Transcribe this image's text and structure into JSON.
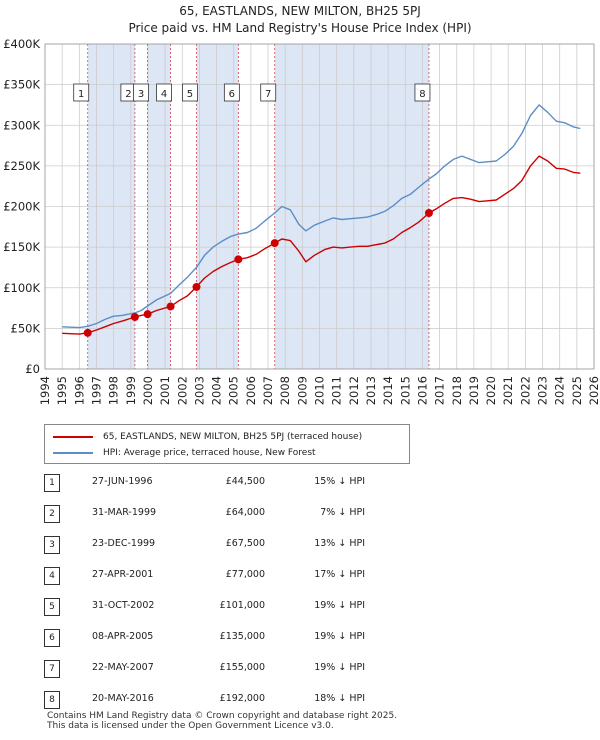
{
  "header": {
    "title": "65, EASTLANDS, NEW MILTON, BH25 5PJ",
    "subtitle": "Price paid vs. HM Land Registry's House Price Index (HPI)"
  },
  "colors": {
    "price_line": "#cc0000",
    "hpi_line": "#5b8ec6",
    "shade": "#dce6f5",
    "grid": "#cccccc",
    "vline": "#cc0000"
  },
  "chart_data": {
    "type": "line",
    "x_range": [
      1994,
      2026
    ],
    "ylim": [
      0,
      400000
    ],
    "y_ticks": [
      {
        "value": 0,
        "label": "£0"
      },
      {
        "value": 50000,
        "label": "£50K"
      },
      {
        "value": 100000,
        "label": "£100K"
      },
      {
        "value": 150000,
        "label": "£150K"
      },
      {
        "value": 200000,
        "label": "£200K"
      },
      {
        "value": 250000,
        "label": "£250K"
      },
      {
        "value": 300000,
        "label": "£300K"
      },
      {
        "value": 350000,
        "label": "£350K"
      },
      {
        "value": 400000,
        "label": "£400K"
      }
    ],
    "x_ticks": [
      "1994",
      "1995",
      "1996",
      "1997",
      "1998",
      "1999",
      "2000",
      "2001",
      "2002",
      "2003",
      "2004",
      "2005",
      "2006",
      "2007",
      "2008",
      "2009",
      "2010",
      "2011",
      "2012",
      "2013",
      "2014",
      "2015",
      "2016",
      "2017",
      "2018",
      "2019",
      "2020",
      "2021",
      "2022",
      "2023",
      "2024",
      "2025",
      "2026"
    ],
    "shaded_ranges": [
      [
        1996.49,
        1999.24
      ],
      [
        1999.98,
        2001.32
      ],
      [
        2002.83,
        2005.27
      ],
      [
        2007.39,
        2016.38
      ]
    ],
    "series": [
      {
        "name": "65, EASTLANDS, NEW MILTON, BH25 5PJ (terraced house)",
        "color": "#cc0000",
        "x": [
          1995.0,
          1995.5,
          1996.0,
          1996.49,
          1997.0,
          1997.5,
          1998.0,
          1998.5,
          1999.24,
          1999.6,
          1999.98,
          2000.5,
          2001.32,
          2001.8,
          2002.3,
          2002.83,
          2003.3,
          2003.8,
          2004.3,
          2004.8,
          2005.27,
          2005.8,
          2006.3,
          2006.8,
          2007.39,
          2007.8,
          2008.3,
          2008.8,
          2009.2,
          2009.7,
          2010.3,
          2010.8,
          2011.3,
          2011.8,
          2012.3,
          2012.8,
          2013.3,
          2013.8,
          2014.3,
          2014.8,
          2015.3,
          2015.8,
          2016.38,
          2016.8,
          2017.3,
          2017.8,
          2018.3,
          2018.8,
          2019.3,
          2019.8,
          2020.3,
          2020.8,
          2021.3,
          2021.8,
          2022.3,
          2022.8,
          2023.3,
          2023.8,
          2024.3,
          2024.8,
          2025.2
        ],
        "values": [
          44000,
          43500,
          43000,
          44500,
          48000,
          52000,
          56000,
          59000,
          64000,
          66000,
          67500,
          72000,
          77000,
          84000,
          90000,
          101000,
          112000,
          120000,
          126000,
          131000,
          135000,
          137000,
          141000,
          148000,
          155000,
          160000,
          158000,
          145000,
          132000,
          140000,
          147000,
          150000,
          149000,
          150000,
          151000,
          151000,
          153000,
          155000,
          160000,
          168000,
          174000,
          181000,
          192000,
          197000,
          204000,
          210000,
          211000,
          209000,
          206000,
          207000,
          208000,
          215000,
          222000,
          232000,
          250000,
          262000,
          256000,
          247000,
          246000,
          242000,
          241000
        ]
      },
      {
        "name": "HPI: Average price, terraced house, New Forest",
        "color": "#5b8ec6",
        "x": [
          1995.0,
          1995.5,
          1996.0,
          1996.49,
          1997.0,
          1997.5,
          1998.0,
          1998.5,
          1999.24,
          1999.6,
          1999.98,
          2000.5,
          2001.32,
          2001.8,
          2002.3,
          2002.83,
          2003.3,
          2003.8,
          2004.3,
          2004.8,
          2005.27,
          2005.8,
          2006.3,
          2006.8,
          2007.39,
          2007.8,
          2008.3,
          2008.8,
          2009.2,
          2009.7,
          2010.3,
          2010.8,
          2011.3,
          2011.8,
          2012.3,
          2012.8,
          2013.3,
          2013.8,
          2014.3,
          2014.8,
          2015.3,
          2015.8,
          2016.38,
          2016.8,
          2017.3,
          2017.8,
          2018.3,
          2018.8,
          2019.3,
          2019.8,
          2020.3,
          2020.8,
          2021.3,
          2021.8,
          2022.3,
          2022.8,
          2023.3,
          2023.8,
          2024.3,
          2024.8,
          2025.2
        ],
        "values": [
          52000,
          51500,
          51000,
          52500,
          56000,
          61000,
          65000,
          66000,
          69000,
          72000,
          77500,
          85000,
          93000,
          103000,
          113000,
          125000,
          140000,
          150000,
          157000,
          163000,
          166000,
          168000,
          173000,
          182000,
          192000,
          200000,
          196000,
          178000,
          170000,
          177000,
          182000,
          186000,
          184000,
          185000,
          186000,
          187000,
          190000,
          194000,
          201000,
          210000,
          215000,
          224000,
          234000,
          240000,
          250000,
          258000,
          262000,
          258000,
          254000,
          255000,
          256000,
          264000,
          274000,
          290000,
          312000,
          325000,
          316000,
          305000,
          303000,
          298000,
          296000
        ]
      }
    ],
    "sales": [
      {
        "num": "1",
        "date": "27-JUN-1996",
        "year": 1996.49,
        "value": 44500,
        "price": "£44,500",
        "hpi": "15% ↓ HPI"
      },
      {
        "num": "2",
        "date": "31-MAR-1999",
        "year": 1999.24,
        "value": 64000,
        "price": "£64,000",
        "hpi": "7% ↓ HPI"
      },
      {
        "num": "3",
        "date": "23-DEC-1999",
        "year": 1999.98,
        "value": 67500,
        "price": "£67,500",
        "hpi": "13% ↓ HPI"
      },
      {
        "num": "4",
        "date": "27-APR-2001",
        "year": 2001.32,
        "value": 77000,
        "price": "£77,000",
        "hpi": "17% ↓ HPI"
      },
      {
        "num": "5",
        "date": "31-OCT-2002",
        "year": 2002.83,
        "value": 101000,
        "price": "£101,000",
        "hpi": "19% ↓ HPI"
      },
      {
        "num": "6",
        "date": "08-APR-2005",
        "year": 2005.27,
        "value": 135000,
        "price": "£135,000",
        "hpi": "19% ↓ HPI"
      },
      {
        "num": "7",
        "date": "22-MAY-2007",
        "year": 2007.39,
        "value": 155000,
        "price": "£155,000",
        "hpi": "19% ↓ HPI"
      },
      {
        "num": "8",
        "date": "20-MAY-2016",
        "year": 2016.38,
        "value": 192000,
        "price": "£192,000",
        "hpi": "18% ↓ HPI"
      }
    ]
  },
  "legend": {
    "price_label": "65, EASTLANDS, NEW MILTON, BH25 5PJ (terraced house)",
    "hpi_label": "HPI: Average price, terraced house, New Forest"
  },
  "footer": {
    "line1": "Contains HM Land Registry data © Crown copyright and database right 2025.",
    "line2": "This data is licensed under the Open Government Licence v3.0."
  }
}
